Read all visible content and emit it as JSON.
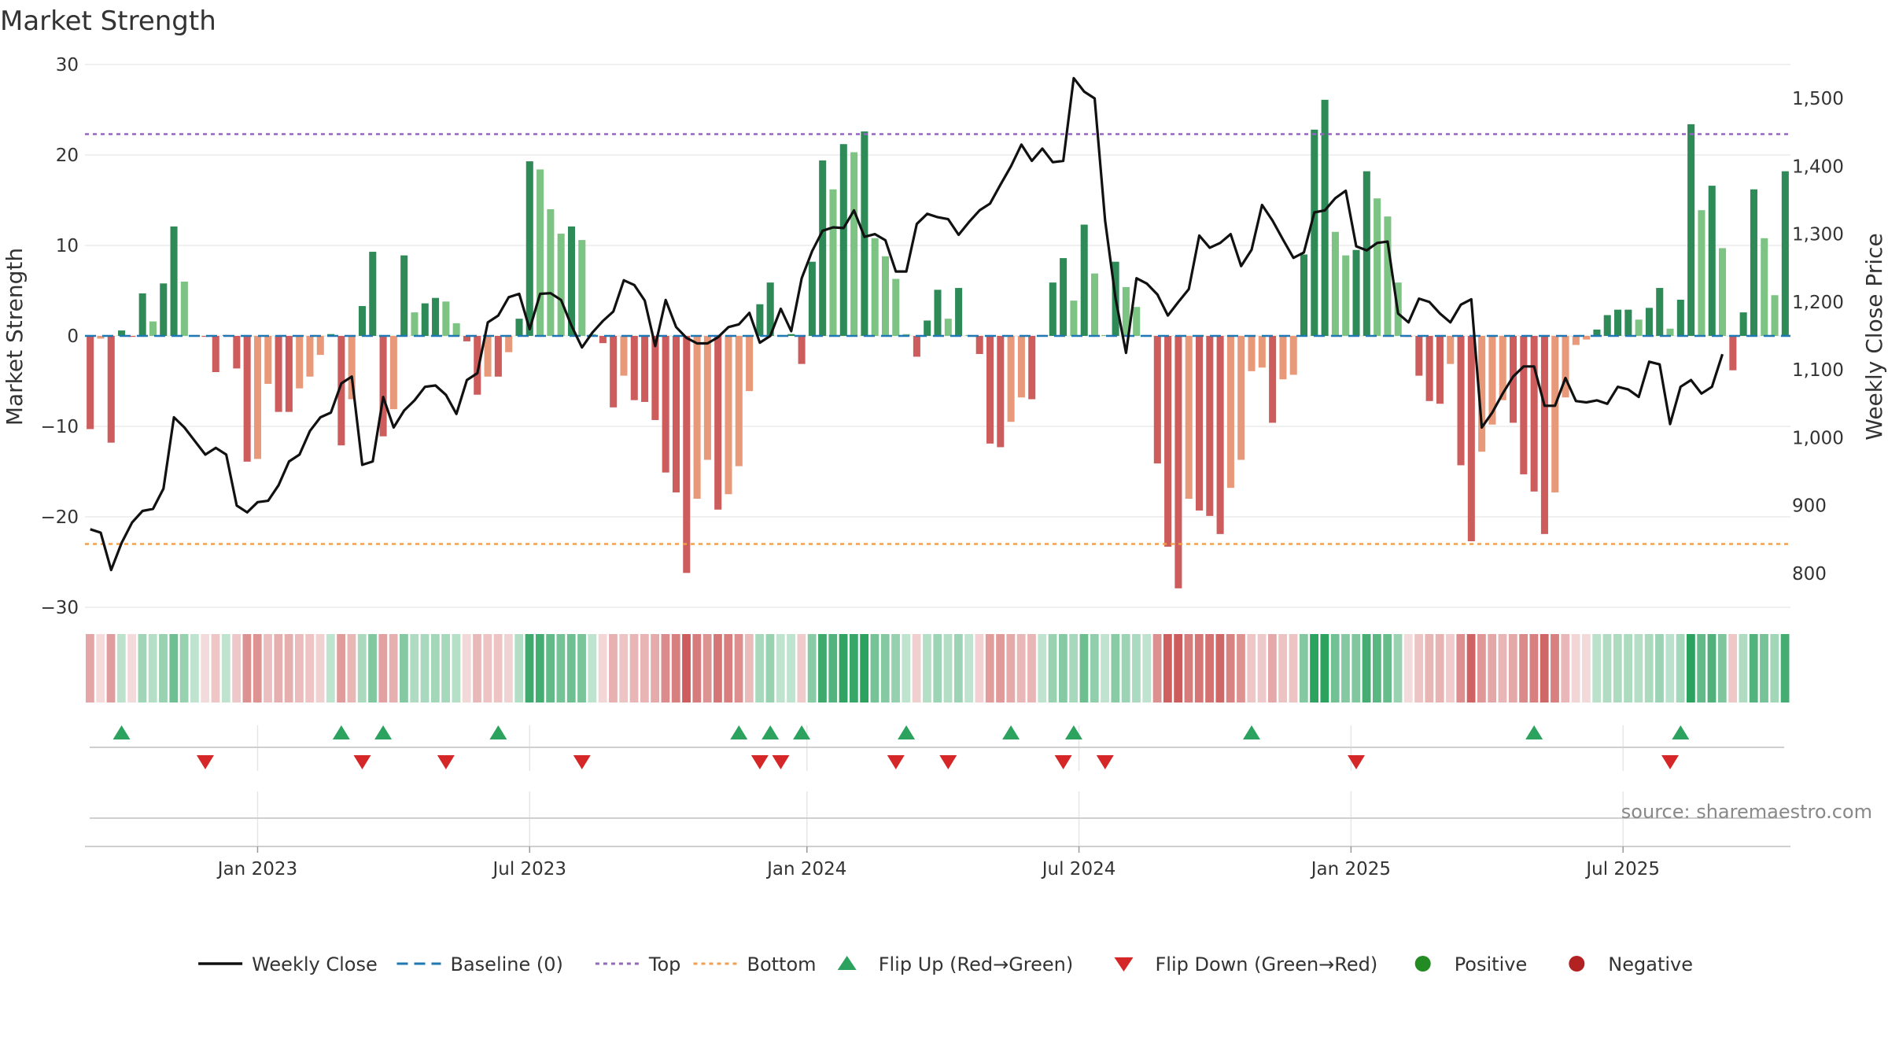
{
  "chart_data": {
    "type": "bar",
    "title": "Market Strength",
    "ylabel": "Market Strength",
    "y2label": "Weekly Close Price",
    "ylim": [
      -30,
      30
    ],
    "y2lim": [
      750,
      1550
    ],
    "yticks": [
      30,
      20,
      10,
      0,
      -10,
      -20,
      -30
    ],
    "ytick_labels": [
      "30",
      "20",
      "10",
      "0",
      "−10",
      "−20",
      "−30"
    ],
    "y2ticks": [
      1500,
      1400,
      1300,
      1200,
      1100,
      1000,
      900,
      800
    ],
    "y2tick_labels": [
      "1,500",
      "1,400",
      "1,300",
      "1,200",
      "1,100",
      "1,000",
      "900",
      "800"
    ],
    "top_level": 22.3,
    "bottom_level": -23,
    "x_ticks": [
      {
        "week": 16,
        "label": "Jan 2023"
      },
      {
        "week": 42,
        "label": "Jul 2023"
      },
      {
        "week": 68.5,
        "label": "Jan 2024"
      },
      {
        "week": 94.5,
        "label": "Jul 2024"
      },
      {
        "week": 120.5,
        "label": "Jan 2025"
      },
      {
        "week": 146.5,
        "label": "Jul 2025"
      }
    ],
    "strength": [
      -10.3,
      -0.3,
      -11.8,
      0.6,
      -0.1,
      4.7,
      1.6,
      5.8,
      12.1,
      6.0,
      0.1,
      -0.1,
      -4.0,
      0.1,
      -3.6,
      -13.9,
      -13.6,
      -5.3,
      -8.4,
      -8.4,
      -5.8,
      -4.5,
      -2.1,
      0.2,
      -12.1,
      -7.0,
      3.3,
      9.3,
      -11.1,
      -8.1,
      8.9,
      2.6,
      3.6,
      4.2,
      3.8,
      1.4,
      -0.6,
      -6.5,
      -4.5,
      -4.5,
      -1.8,
      1.9,
      19.3,
      18.4,
      14.0,
      11.3,
      12.1,
      10.6,
      0.2,
      -0.8,
      -7.9,
      -4.4,
      -7.1,
      -7.3,
      -9.3,
      -15.1,
      -17.3,
      -26.2,
      -18.0,
      -13.7,
      -19.2,
      -17.5,
      -14.4,
      -6.1,
      3.5,
      5.9,
      0.1,
      0.2,
      -3.1,
      8.2,
      19.4,
      16.2,
      21.2,
      20.3,
      22.6,
      10.8,
      8.8,
      6.3,
      0.2,
      -2.3,
      1.7,
      5.1,
      1.9,
      5.3,
      0.1,
      -2.0,
      -11.9,
      -12.3,
      -9.5,
      -6.8,
      -7.0,
      0.1,
      5.9,
      8.6,
      3.9,
      12.3,
      6.9,
      0.1,
      8.2,
      5.4,
      3.2,
      0.1,
      -14.1,
      -23.3,
      -27.9,
      -18.0,
      -19.3,
      -19.9,
      -21.9,
      -16.8,
      -13.7,
      -3.9,
      -3.5,
      -9.6,
      -4.8,
      -4.3,
      9.0,
      22.8,
      26.1,
      11.5,
      8.9,
      9.5,
      18.2,
      15.2,
      13.2,
      5.9,
      -0.1,
      -4.4,
      -7.2,
      -7.5,
      -3.1,
      -14.3,
      -22.7,
      -12.8,
      -9.8,
      -7.1,
      -9.6,
      -15.3,
      -17.2,
      -21.9,
      -17.3,
      -6.8,
      -1.0,
      -0.4,
      0.7,
      2.3,
      2.9,
      2.9,
      1.8,
      3.1,
      5.3,
      0.8,
      4.0,
      23.4,
      13.9,
      16.6,
      9.7,
      -3.8,
      2.6,
      16.2,
      10.8,
      4.5,
      18.2
    ],
    "weekly_close": [
      865,
      860,
      805,
      845,
      875,
      892,
      895,
      925,
      1030,
      1015,
      995,
      975,
      985,
      975,
      900,
      890,
      905,
      907,
      930,
      965,
      975,
      1010,
      1030,
      1037,
      1080,
      1090,
      960,
      965,
      1060,
      1015,
      1040,
      1055,
      1075,
      1077,
      1063,
      1035,
      1085,
      1095,
      1170,
      1180,
      1207,
      1212,
      1160,
      1212,
      1213,
      1203,
      1165,
      1133,
      1155,
      1172,
      1186,
      1232,
      1225,
      1202,
      1135,
      1203,
      1163,
      1147,
      1139,
      1139,
      1148,
      1163,
      1167,
      1184,
      1140,
      1150,
      1190,
      1157,
      1235,
      1275,
      1305,
      1310,
      1309,
      1335,
      1296,
      1300,
      1291,
      1245,
      1245,
      1315,
      1330,
      1325,
      1322,
      1299,
      1318,
      1335,
      1345,
      1373,
      1400,
      1432,
      1408,
      1426,
      1406,
      1408,
      1530,
      1510,
      1500,
      1320,
      1205,
      1125,
      1235,
      1227,
      1211,
      1180,
      1200,
      1219,
      1298,
      1280,
      1287,
      1300,
      1253,
      1277,
      1343,
      1320,
      1292,
      1265,
      1273,
      1332,
      1335,
      1353,
      1364,
      1282,
      1276,
      1287,
      1289,
      1183,
      1170,
      1205,
      1200,
      1183,
      1170,
      1196,
      1204,
      1015,
      1037,
      1065,
      1090,
      1105,
      1105,
      1047,
      1047,
      1088,
      1054,
      1052,
      1055,
      1050,
      1075,
      1071,
      1060,
      1112,
      1108,
      1020,
      1075,
      1085,
      1065,
      1075,
      1123
    ],
    "flip_up_weeks": [
      3,
      24,
      28,
      39,
      62,
      65,
      68,
      78,
      88,
      94,
      111,
      138,
      152
    ],
    "flip_down_weeks": [
      11,
      26,
      34,
      47,
      64,
      66,
      77,
      82,
      93,
      97,
      121,
      151
    ],
    "series_colors": {
      "strong_positive": "#2e8b57",
      "weak_positive": "#7dc383",
      "weak_negative": "#e8997a",
      "strong_negative": "#cd5c5c",
      "close": "#111111",
      "baseline": "#1f77b4",
      "top": "#9467bd",
      "bottom": "#f0a050",
      "flip_up": "#2ca25f",
      "flip_down": "#d62728",
      "positive_dot": "#228b22",
      "negative_dot": "#b22222"
    },
    "legend": [
      "Weekly Close",
      "Baseline (0)",
      "Top",
      "Bottom",
      "Flip Up (Red→Green)",
      "Flip Down (Green→Red)",
      "Positive",
      "Negative"
    ],
    "legend_placement": "bottom-center"
  },
  "source": "source: sharemaestro.com"
}
